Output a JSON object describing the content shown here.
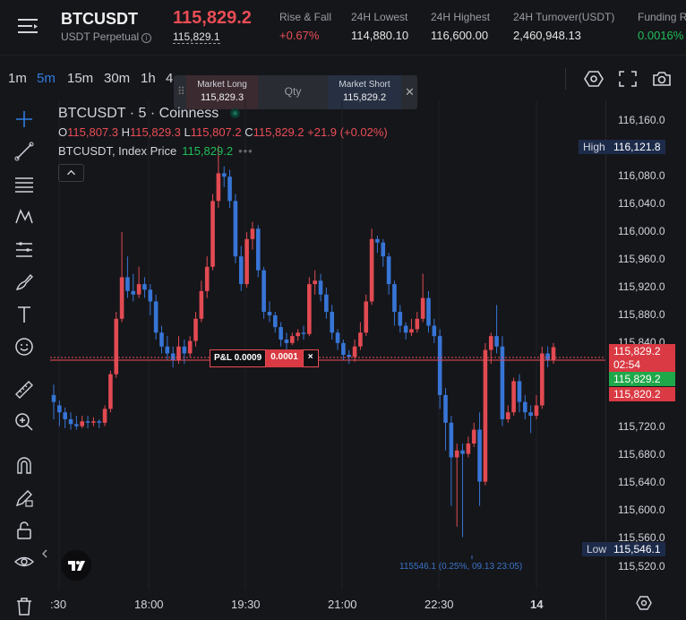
{
  "header": {
    "symbol": "BTCUSDT",
    "contract_type": "USDT Perpetual",
    "last_price": "115,829.2",
    "mark_price": "115,829.1",
    "stats": [
      {
        "label": "Rise & Fall",
        "value": "+0.67%"
      },
      {
        "label": "24H Lowest",
        "value": "114,880.10"
      },
      {
        "label": "24H Highest",
        "value": "116,600.00"
      },
      {
        "label": "24H Turnover(USDT)",
        "value": "2,460,948.13"
      },
      {
        "label": "Funding R",
        "value": "0.0016%"
      }
    ]
  },
  "timeframes": [
    "1m",
    "5m",
    "15m",
    "30m",
    "1h",
    "4"
  ],
  "active_timeframe": "5m",
  "order_panel": {
    "long_label": "Market Long",
    "long_price": "115,829.3",
    "qty_placeholder": "Qty",
    "short_label": "Market Short",
    "short_price": "115,829.2"
  },
  "legend": {
    "title": "BTCUSDT · 5 · Coinness",
    "open_label": "O",
    "open": "115,807.3",
    "high_label": "H",
    "high": "115,829.3",
    "low_label": "L",
    "low": "115,807.2",
    "close_label": "C",
    "close": "115,829.2",
    "change": "+21.9 (+0.02%)",
    "index_label": "BTCUSDT, Index Price",
    "index_value": "115,829.2",
    "more": "•••"
  },
  "position": {
    "pnl_label": "P&L 0.0009",
    "qty": "0.0001",
    "close_symbol": "×"
  },
  "price_axis": {
    "ticks": [
      "116,160.0",
      "116,080.0",
      "116,040.0",
      "116,000.0",
      "115,960.0",
      "115,920.0",
      "115,880.0",
      "115,840.0",
      "115,720.0",
      "115,680.0",
      "115,640.0",
      "115,600.0",
      "115,560.0",
      "115,520.0"
    ],
    "high_label": "High",
    "high_value": "116,121.8",
    "low_label": "Low",
    "low_value": "115,546.1",
    "last_price": "115,829.2",
    "countdown": "02:54",
    "index_price": "115,829.2",
    "entry_price": "115,820.2"
  },
  "time_axis": [
    ":30",
    "18:00",
    "19:30",
    "21:00",
    "22:30",
    "14"
  ],
  "low_annotation": "115546.1 (0.25%, 09.13 23:05)",
  "colors": {
    "up": "#1fbd58",
    "down": "#ea4d55",
    "candle_up": "#e24a52",
    "candle_down": "#3775d6",
    "accent": "#2f7de1"
  },
  "chart_data": {
    "type": "candlestick",
    "x_labels": [
      ":30",
      "18:00",
      "19:30",
      "21:00",
      "22:30",
      "14"
    ],
    "ylim": [
      115500,
      116180
    ],
    "candles": [
      [
        115760,
        115750,
        115725,
        115775
      ],
      [
        115745,
        115735,
        115715,
        115752
      ],
      [
        115735,
        115725,
        115712,
        115742
      ],
      [
        115725,
        115718,
        115710,
        115735
      ],
      [
        115718,
        115715,
        115710,
        115730
      ],
      [
        115715,
        115722,
        115712,
        115730
      ],
      [
        115722,
        115720,
        115712,
        115730
      ],
      [
        115720,
        115722,
        115715,
        115728
      ],
      [
        115722,
        115720,
        115712,
        115725
      ],
      [
        115720,
        115740,
        115715,
        115745
      ],
      [
        115740,
        115790,
        115735,
        115795
      ],
      [
        115790,
        115870,
        115785,
        115880
      ],
      [
        115870,
        115930,
        115865,
        115995
      ],
      [
        115930,
        115910,
        115900,
        115960
      ],
      [
        115910,
        115905,
        115895,
        115935
      ],
      [
        115905,
        115920,
        115900,
        115945
      ],
      [
        115920,
        115912,
        115900,
        115930
      ],
      [
        115912,
        115895,
        115875,
        115920
      ],
      [
        115895,
        115850,
        115840,
        115905
      ],
      [
        115850,
        115830,
        115820,
        115860
      ],
      [
        115830,
        115820,
        115810,
        115845
      ],
      [
        115820,
        115810,
        115800,
        115830
      ],
      [
        115810,
        115830,
        115805,
        115845
      ],
      [
        115830,
        115820,
        115805,
        115840
      ],
      [
        115820,
        115838,
        115815,
        115845
      ],
      [
        115838,
        115870,
        115830,
        115880
      ],
      [
        115870,
        115910,
        115865,
        115925
      ],
      [
        115910,
        115945,
        115900,
        115960
      ],
      [
        115945,
        116040,
        115940,
        116050
      ],
      [
        116040,
        116080,
        116030,
        116120
      ],
      [
        116080,
        116075,
        116060,
        116090
      ],
      [
        116075,
        116040,
        116030,
        116085
      ],
      [
        116040,
        115960,
        115950,
        116050
      ],
      [
        115960,
        115920,
        115910,
        115975
      ],
      [
        115920,
        115985,
        115915,
        115995
      ],
      [
        115985,
        116000,
        115970,
        116010
      ],
      [
        116000,
        115940,
        115930,
        116005
      ],
      [
        115940,
        115880,
        115870,
        115945
      ],
      [
        115880,
        115875,
        115865,
        115895
      ],
      [
        115875,
        115858,
        115850,
        115880
      ],
      [
        115858,
        115840,
        115830,
        115865
      ],
      [
        115840,
        115835,
        115825,
        115850
      ],
      [
        115835,
        115845,
        115832,
        115850
      ],
      [
        115845,
        115850,
        115838,
        115855
      ],
      [
        115850,
        115848,
        115840,
        115860
      ],
      [
        115848,
        115920,
        115845,
        115930
      ],
      [
        115920,
        115925,
        115905,
        115940
      ],
      [
        115925,
        115905,
        115895,
        115935
      ],
      [
        115905,
        115880,
        115870,
        115915
      ],
      [
        115880,
        115850,
        115840,
        115890
      ],
      [
        115850,
        115835,
        115825,
        115855
      ],
      [
        115835,
        115818,
        115810,
        115840
      ],
      [
        115818,
        115815,
        115805,
        115825
      ],
      [
        115815,
        115830,
        115808,
        115840
      ],
      [
        115830,
        115850,
        115825,
        115865
      ],
      [
        115850,
        115895,
        115845,
        115905
      ],
      [
        115895,
        115985,
        115890,
        116000
      ],
      [
        115985,
        115980,
        115965,
        115990
      ],
      [
        115980,
        115960,
        115945,
        115985
      ],
      [
        115960,
        115920,
        115905,
        115965
      ],
      [
        115920,
        115880,
        115860,
        115925
      ],
      [
        115880,
        115860,
        115850,
        115890
      ],
      [
        115860,
        115850,
        115840,
        115865
      ],
      [
        115850,
        115855,
        115845,
        115870
      ],
      [
        115855,
        115870,
        115850,
        115880
      ],
      [
        115870,
        115900,
        115865,
        115935
      ],
      [
        115900,
        115860,
        115850,
        115910
      ],
      [
        115860,
        115845,
        115835,
        115870
      ],
      [
        115845,
        115760,
        115740,
        115855
      ],
      [
        115760,
        115720,
        115680,
        115770
      ],
      [
        115720,
        115670,
        115600,
        115730
      ],
      [
        115670,
        115680,
        115570,
        115690
      ],
      [
        115680,
        115675,
        115555,
        115690
      ],
      [
        115675,
        115690,
        115670,
        115700
      ],
      [
        115690,
        115710,
        115685,
        115720
      ],
      [
        115710,
        115635,
        115600,
        115735
      ],
      [
        115635,
        115825,
        115630,
        115835
      ],
      [
        115825,
        115845,
        115805,
        115850
      ],
      [
        115845,
        115830,
        115820,
        115890
      ],
      [
        115830,
        115725,
        115715,
        115845
      ],
      [
        115725,
        115735,
        115720,
        115745
      ],
      [
        115735,
        115780,
        115730,
        115785
      ],
      [
        115780,
        115750,
        115735,
        115790
      ],
      [
        115750,
        115735,
        115725,
        115760
      ],
      [
        115735,
        115730,
        115705,
        115745
      ],
      [
        115730,
        115745,
        115725,
        115760
      ],
      [
        115745,
        115820,
        115740,
        115830
      ],
      [
        115820,
        115810,
        115800,
        115830
      ],
      [
        115810,
        115829,
        115805,
        115835
      ]
    ]
  }
}
